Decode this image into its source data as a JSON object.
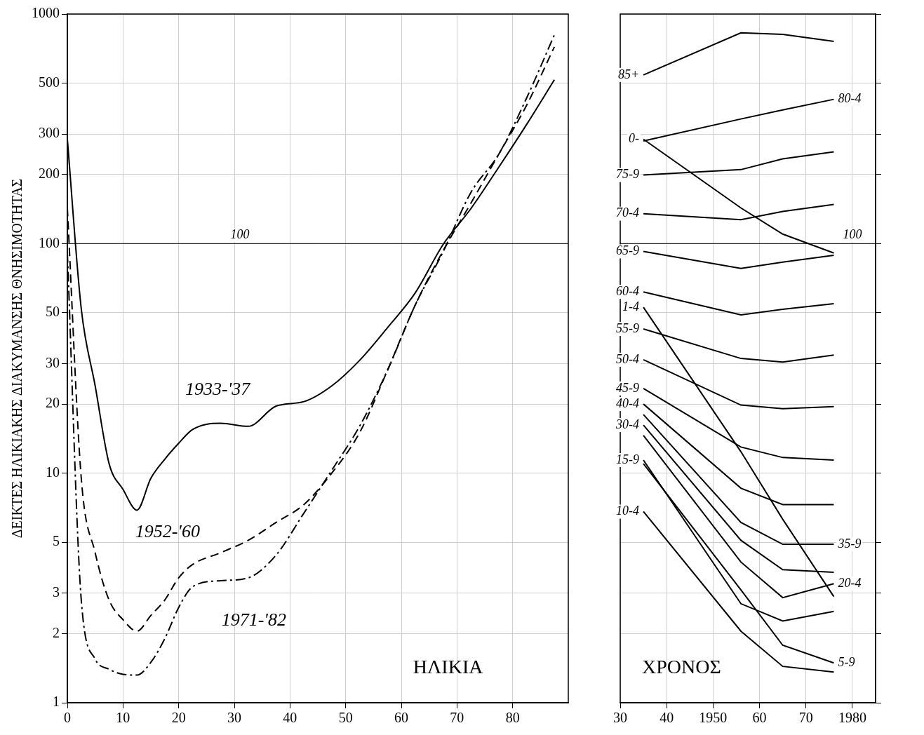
{
  "chart_data": [
    {
      "type": "line",
      "xlabel": "ΗΛΙΚΙΑ",
      "ylabel": "ΔΕΙΚΤΕΣ ΗΛΙΚΙΑΚΗΣ ΔΙΑΚΥΜΑΝΣΗΣ ΘΝΗΣΙΜΟΤΗΤΑΣ",
      "x": [
        0,
        2.5,
        5,
        7.5,
        10,
        12.5,
        15,
        17.5,
        20,
        22.5,
        27.5,
        32.5,
        37.5,
        42.5,
        47.5,
        52.5,
        57.5,
        62.5,
        67.5,
        72.5,
        77.5,
        82.5,
        87.5
      ],
      "series": [
        {
          "name": "1933-'37",
          "color": "#000000",
          "line_style": "solid",
          "values": [
            285,
            52,
            24,
            11,
            8.5,
            6.9,
            9.5,
            11.5,
            13.5,
            15.5,
            16.5,
            16,
            19.6,
            20.5,
            24,
            31,
            43,
            61,
            99,
            142,
            215,
            330,
            517
          ]
        },
        {
          "name": "1952-'60",
          "color": "#000000",
          "line_style": "dashed",
          "values": [
            143,
            9.5,
            4.5,
            2.8,
            2.3,
            2.05,
            2.4,
            2.8,
            3.5,
            4,
            4.5,
            5.1,
            6.1,
            7.3,
            10,
            15,
            28,
            54,
            93,
            150,
            245,
            400,
            719
          ]
        },
        {
          "name": "1971-'82",
          "color": "#000000",
          "line_style": "dashdot",
          "values": [
            91,
            2.8,
            1.55,
            1.4,
            1.33,
            1.32,
            1.5,
            1.9,
            2.6,
            3.2,
            3.4,
            3.5,
            4.4,
            6.7,
            10.3,
            16,
            28,
            54,
            92,
            167,
            245,
            430,
            811
          ]
        }
      ],
      "annotations": [
        {
          "text": "1933-'37",
          "x": 27,
          "y": 23
        },
        {
          "text": "1952-'60",
          "x": 18,
          "y": 5.5
        },
        {
          "text": "1971-'82",
          "x": 33.5,
          "y": 2.27
        }
      ],
      "reference_lines": [
        {
          "y": 100,
          "label": "100",
          "x": 31
        }
      ],
      "xlim": [
        0,
        90
      ],
      "xticks": [
        0,
        10,
        20,
        30,
        40,
        50,
        60,
        70,
        80
      ],
      "ylim": [
        1,
        1000
      ],
      "yticks": [
        1,
        2,
        3,
        5,
        10,
        20,
        30,
        50,
        100,
        200,
        300,
        500,
        1000
      ],
      "log": "y",
      "grid": true
    },
    {
      "type": "line",
      "xlabel": "ΧΡΟΝΟΣ",
      "x": [
        1935,
        1956,
        1965,
        1976
      ],
      "series": [
        {
          "name": "85+",
          "color": "#000000",
          "line_style": "solid",
          "values": [
            543,
            828,
            816,
            760
          ]
        },
        {
          "name": "0-",
          "color": "#000000",
          "line_style": "solid",
          "values": [
            285,
            143,
            110,
            91
          ]
        },
        {
          "name": "80-4",
          "color": "#000000",
          "line_style": "solid",
          "values": [
            280,
            349,
            382,
            425
          ]
        },
        {
          "name": "75-9",
          "color": "#000000",
          "line_style": "solid",
          "values": [
            199,
            210,
            234,
            251
          ]
        },
        {
          "name": "70-4",
          "color": "#000000",
          "line_style": "solid",
          "values": [
            135,
            127,
            138,
            148
          ]
        },
        {
          "name": "65-9",
          "color": "#000000",
          "line_style": "solid",
          "values": [
            92.5,
            78,
            83,
            89
          ]
        },
        {
          "name": "60-4",
          "color": "#000000",
          "line_style": "solid",
          "values": [
            61.6,
            48.9,
            51.7,
            54.7
          ]
        },
        {
          "name": "1-4",
          "color": "#000000",
          "line_style": "solid",
          "values": [
            52.8,
            12.4,
            6.3,
            2.9
          ]
        },
        {
          "name": "55-9",
          "color": "#000000",
          "line_style": "solid",
          "values": [
            42.5,
            31.6,
            30.5,
            32.7
          ]
        },
        {
          "name": "50-4",
          "color": "#000000",
          "line_style": "solid",
          "values": [
            31.2,
            19.8,
            19.1,
            19.5
          ]
        },
        {
          "name": "45-9",
          "color": "#000000",
          "line_style": "solid",
          "values": [
            23.4,
            13,
            11.7,
            11.4
          ]
        },
        {
          "name": "40-4",
          "color": "#000000",
          "line_style": "solid",
          "values": [
            20,
            8.6,
            7.3,
            7.3
          ]
        },
        {
          "name": "35-9",
          "color": "#000000",
          "line_style": "solid",
          "values": [
            18,
            6.1,
            4.9,
            4.9
          ]
        },
        {
          "name": "30-4",
          "color": "#000000",
          "line_style": "solid",
          "values": [
            16.2,
            5.1,
            3.8,
            3.7
          ]
        },
        {
          "name": "20-4",
          "color": "#000000",
          "line_style": "solid",
          "values": [
            14.6,
            4.1,
            2.87,
            3.3
          ]
        },
        {
          "name": "15-9",
          "color": "#000000",
          "line_style": "solid",
          "values": [
            11.4,
            2.7,
            2.27,
            2.5
          ]
        },
        {
          "name": "5-9",
          "color": "#000000",
          "line_style": "solid",
          "values": [
            11,
            3.1,
            1.78,
            1.49
          ]
        },
        {
          "name": "10-4",
          "color": "#000000",
          "line_style": "solid",
          "values": [
            6.8,
            2.05,
            1.44,
            1.36
          ]
        }
      ],
      "reference_lines": [
        {
          "y": 100,
          "label": "100",
          "x": 1980
        }
      ],
      "xlim": [
        1930,
        1985
      ],
      "xticks": [
        {
          "value": 1930,
          "label": "30"
        },
        {
          "value": 1940,
          "label": "40"
        },
        1950,
        {
          "value": 1960,
          "label": "60"
        },
        {
          "value": 1970,
          "label": "70"
        },
        1980
      ],
      "ylim": [
        1,
        1000
      ],
      "yticks": [
        1,
        2,
        3,
        5,
        10,
        20,
        30,
        50,
        100,
        200,
        300,
        500,
        1000
      ],
      "log": "y",
      "grid": true,
      "tick_labels": "x"
    }
  ]
}
